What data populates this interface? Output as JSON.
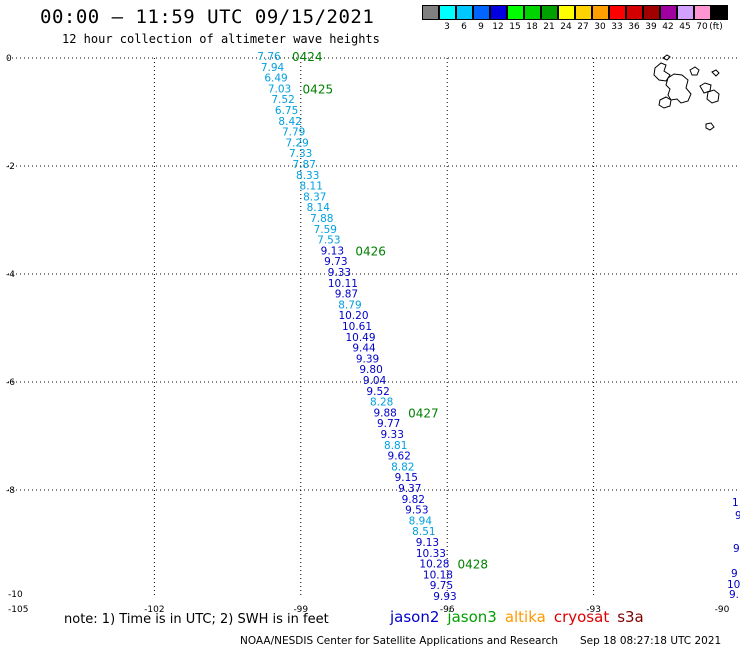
{
  "header": {
    "title": "00:00 — 11:59 UTC 09/15/2021",
    "subtitle": "12 hour collection of altimeter wave heights"
  },
  "legend_colorbar": {
    "unit_label": "(ft)",
    "swatches": [
      {
        "color": "#808080",
        "label": ""
      },
      {
        "color": "#00ffff",
        "label": "3"
      },
      {
        "color": "#00c8ff",
        "label": "6"
      },
      {
        "color": "#0064ff",
        "label": "9"
      },
      {
        "color": "#0000e0",
        "label": "12"
      },
      {
        "color": "#00ff00",
        "label": "15"
      },
      {
        "color": "#00d400",
        "label": "18"
      },
      {
        "color": "#00a000",
        "label": "21"
      },
      {
        "color": "#ffff00",
        "label": "24"
      },
      {
        "color": "#ffd200",
        "label": "27"
      },
      {
        "color": "#ffa000",
        "label": "30"
      },
      {
        "color": "#ff0000",
        "label": "33"
      },
      {
        "color": "#d20000",
        "label": "36"
      },
      {
        "color": "#a00000",
        "label": "39"
      },
      {
        "color": "#a000a0",
        "label": "42"
      },
      {
        "color": "#d2a0ff",
        "label": "45"
      },
      {
        "color": "#ff96d2",
        "label": "70"
      },
      {
        "color": "#000000",
        "label": ""
      }
    ]
  },
  "map": {
    "lon_range": [
      -105,
      -90
    ],
    "lat_range": [
      -10,
      0
    ],
    "lon_ticks": [
      "-105",
      "-102",
      "-99",
      "-96",
      "-93",
      "-90"
    ],
    "lat_ticks": [
      "0",
      "-2",
      "-4",
      "-6",
      "-8",
      "-10"
    ],
    "grid": "dotted",
    "pass_labels": [
      "0424",
      "0425",
      "0426",
      "0427",
      "0428"
    ],
    "track_color_light": "#00a0e0",
    "track_color_dark": "#0000c8",
    "pass_label_color": "#008000",
    "measurements": [
      {
        "v": "7.76",
        "c": "light"
      },
      {
        "v": "7.94",
        "c": "light"
      },
      {
        "v": "6.49",
        "c": "light"
      },
      {
        "v": "7.03",
        "c": "light"
      },
      {
        "v": "7.52",
        "c": "light"
      },
      {
        "v": "6.75",
        "c": "light"
      },
      {
        "v": "8.42",
        "c": "light"
      },
      {
        "v": "7.79",
        "c": "light"
      },
      {
        "v": "7.29",
        "c": "light"
      },
      {
        "v": "7.33",
        "c": "light"
      },
      {
        "v": "7.87",
        "c": "light"
      },
      {
        "v": "8.33",
        "c": "light"
      },
      {
        "v": "8.11",
        "c": "light"
      },
      {
        "v": "8.37",
        "c": "light"
      },
      {
        "v": "8.14",
        "c": "light"
      },
      {
        "v": "7.88",
        "c": "light"
      },
      {
        "v": "7.59",
        "c": "light"
      },
      {
        "v": "7.53",
        "c": "light"
      },
      {
        "v": "9.13",
        "c": "dark"
      },
      {
        "v": "9.73",
        "c": "dark"
      },
      {
        "v": "9.33",
        "c": "dark"
      },
      {
        "v": "10.11",
        "c": "dark"
      },
      {
        "v": "9.87",
        "c": "dark"
      },
      {
        "v": "8.79",
        "c": "light"
      },
      {
        "v": "10.20",
        "c": "dark"
      },
      {
        "v": "10.61",
        "c": "dark"
      },
      {
        "v": "10.49",
        "c": "dark"
      },
      {
        "v": "9.44",
        "c": "dark"
      },
      {
        "v": "9.39",
        "c": "dark"
      },
      {
        "v": "9.80",
        "c": "dark"
      },
      {
        "v": "9.04",
        "c": "dark"
      },
      {
        "v": "9.52",
        "c": "dark"
      },
      {
        "v": "8.28",
        "c": "light"
      },
      {
        "v": "9.88",
        "c": "dark"
      },
      {
        "v": "9.77",
        "c": "dark"
      },
      {
        "v": "9.33",
        "c": "dark"
      },
      {
        "v": "8.81",
        "c": "light"
      },
      {
        "v": "9.62",
        "c": "dark"
      },
      {
        "v": "8.82",
        "c": "light"
      },
      {
        "v": "9.15",
        "c": "dark"
      },
      {
        "v": "9.37",
        "c": "dark"
      },
      {
        "v": "9.82",
        "c": "dark"
      },
      {
        "v": "9.53",
        "c": "dark"
      },
      {
        "v": "8.94",
        "c": "light"
      },
      {
        "v": "8.51",
        "c": "light"
      },
      {
        "v": "9.13",
        "c": "dark"
      },
      {
        "v": "10.33",
        "c": "dark"
      },
      {
        "v": "10.28",
        "c": "dark"
      },
      {
        "v": "10.18",
        "c": "dark"
      },
      {
        "v": "9.75",
        "c": "dark"
      },
      {
        "v": "9.93",
        "c": "dark"
      }
    ],
    "edge_values": [
      "1",
      "9.",
      "9.",
      "9",
      "10",
      "9."
    ]
  },
  "footer": {
    "note": "note: 1) Time is in UTC; 2) SWH is in feet",
    "satellites": [
      {
        "name": "jason2",
        "color": "#0000c8"
      },
      {
        "name": "jason3",
        "color": "#00a000"
      },
      {
        "name": "altika",
        "color": "#ff9900"
      },
      {
        "name": "cryosat",
        "color": "#e00000"
      },
      {
        "name": "s3a",
        "color": "#800000"
      }
    ],
    "credit": "NOAA/NESDIS Center for Satellite Applications and Research",
    "timestamp": "Sep 18 08:27:18 UTC 2021"
  }
}
